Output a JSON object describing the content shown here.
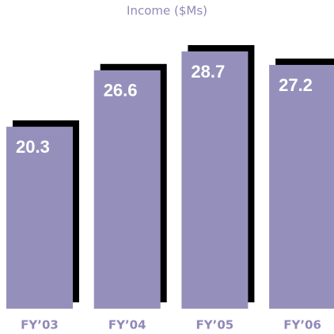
{
  "chart_data": {
    "type": "bar",
    "title": "Income ($Ms)",
    "categories": [
      "FY’03",
      "FY’04",
      "FY’05",
      "FY’06"
    ],
    "values": [
      20.3,
      26.6,
      28.7,
      27.2
    ],
    "color": "#9590bb"
  }
}
